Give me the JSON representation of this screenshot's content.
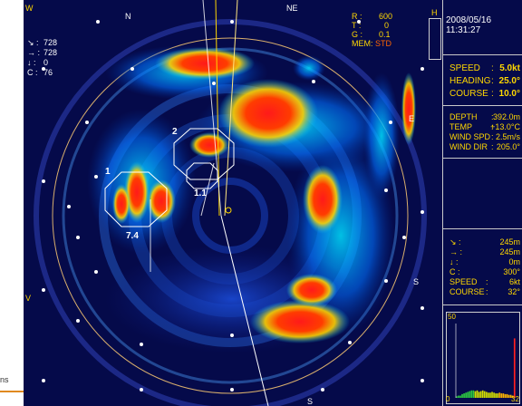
{
  "timestamp": "2008/05/16 11:31:27",
  "settings": {
    "r_label": "R :",
    "r_value": "600",
    "t_label": "T :",
    "t_value": "0",
    "g_label": "G :",
    "g_value": "0.1",
    "mem_label": "MEM:",
    "mem_value": "STD",
    "h_label": "H"
  },
  "left_readout": {
    "row1_label": "↘ :",
    "row1_value": "728",
    "row2_label": "→ :",
    "row2_value": "728",
    "row3_label": "↓ :",
    "row3_value": "0",
    "row4_label": "C :",
    "row4_value": "76"
  },
  "nav": {
    "speed_label": "SPEED",
    "speed_value": "5.0kt",
    "heading_label": "HEADING",
    "heading_value": "25.0°",
    "course_label": "COURSE",
    "course_value": "10.0°"
  },
  "env": {
    "depth_label": "DEPTH",
    "depth_value": "392.0m",
    "temp_label": "TEMP",
    "temp_value": "+13.0°C",
    "wind_spd_label": "WIND SPD",
    "wind_spd_value": "2.5m/s",
    "wind_dir_label": "WIND DIR",
    "wind_dir_value": "205.0°"
  },
  "target": {
    "r1_label": "↘ :",
    "r1_value": "245m",
    "r2_label": "→ :",
    "r2_value": "245m",
    "r3_label": "↓ :",
    "r3_value": "0m",
    "r4_label": "C :",
    "r4_value": "300°",
    "speed_label": "SPEED",
    "speed_value": "6kt",
    "course_label": "COURSE",
    "course_value": "32°"
  },
  "histogram": {
    "y_top": "50",
    "x_left": "0",
    "x_right": "32",
    "bars": [
      0.02,
      0.03,
      0.03,
      0.05,
      0.06,
      0.07,
      0.08,
      0.09,
      0.1,
      0.1,
      0.09,
      0.1,
      0.08,
      0.09,
      0.1,
      0.09,
      0.08,
      0.07,
      0.07,
      0.08,
      0.07,
      0.06,
      0.06,
      0.07,
      0.06,
      0.06,
      0.05,
      0.05,
      0.04,
      0.04,
      0.03,
      0.8
    ]
  },
  "compass": {
    "n": "N",
    "ne": "NE",
    "e": "E",
    "s": "S",
    "s2": "S",
    "v": "V",
    "w": "W"
  },
  "zones": {
    "z1": "1",
    "z2": "2",
    "z11": "1.1",
    "z74": "7.4"
  },
  "corner_text": "ns",
  "colors": {
    "background": "#050a4a",
    "accent": "#ffd700",
    "alert": "#ff6600"
  }
}
